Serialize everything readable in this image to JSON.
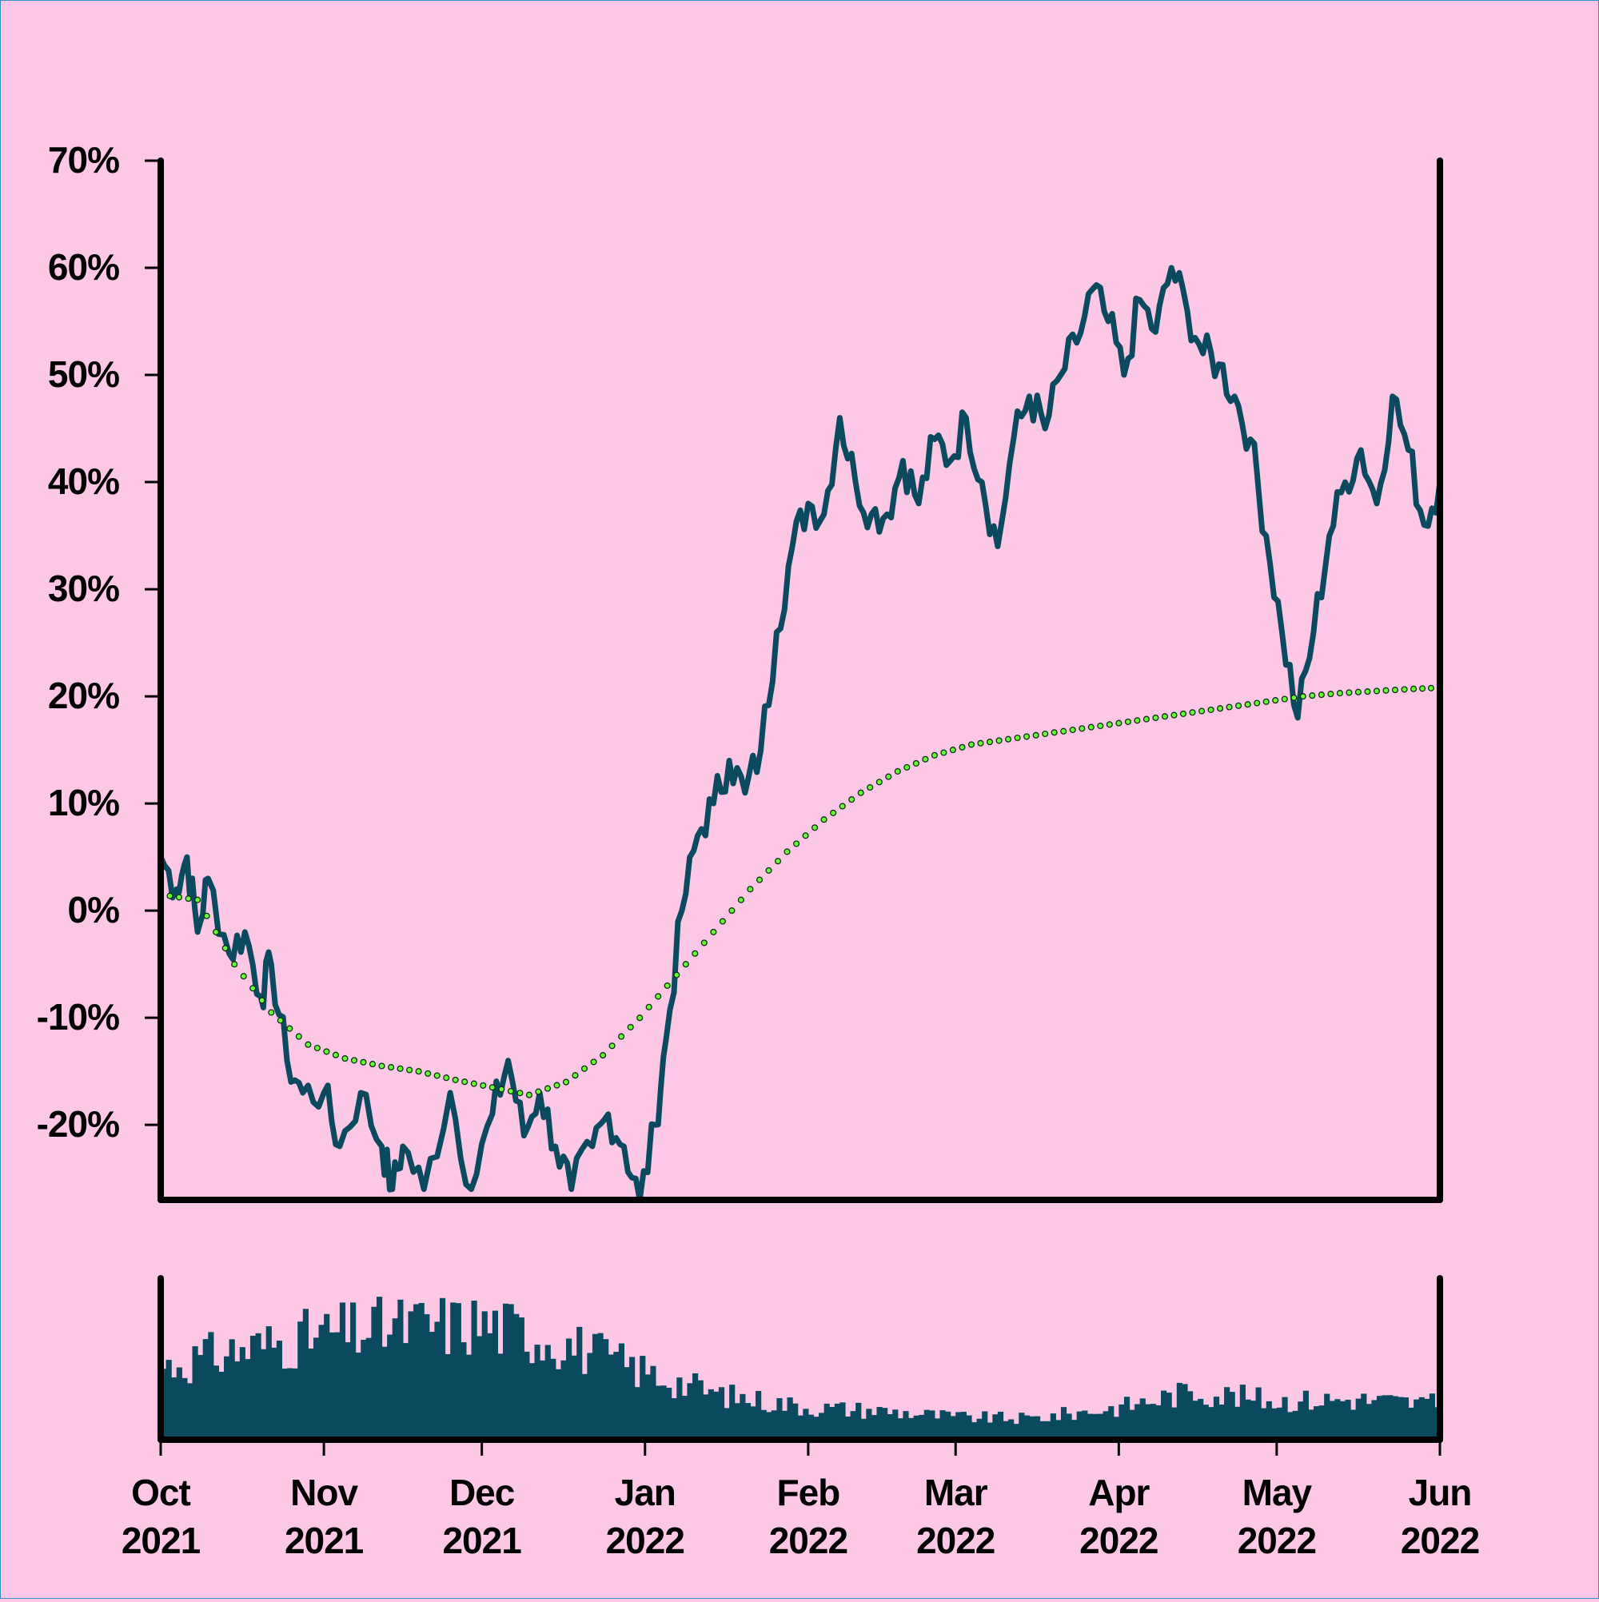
{
  "chart_data": {
    "type": "line",
    "colors": {
      "background": "#fcc8e6",
      "price_line": "#0b4a5e",
      "moving_average_fill": "#66ff33",
      "moving_average_edge": "#0a2a10",
      "volume_bars": "#0b4a5e",
      "axes": "#000000"
    },
    "y_axis": {
      "range": [
        -27,
        70
      ],
      "ticks": [
        70,
        60,
        50,
        40,
        30,
        20,
        10,
        0,
        -10,
        -20
      ],
      "tick_labels": [
        "70%",
        "60%",
        "50%",
        "40%",
        "30%",
        "20%",
        "10%",
        "0%",
        "-10%",
        "-20%"
      ]
    },
    "x_axis": {
      "range": [
        "2021-10-01",
        "2022-06-01"
      ],
      "ticks": [
        {
          "month": "Oct",
          "year": "2021",
          "date": "2021-10-01"
        },
        {
          "month": "Nov",
          "year": "2021",
          "date": "2021-11-01"
        },
        {
          "month": "Dec",
          "year": "2021",
          "date": "2021-12-01"
        },
        {
          "month": "Jan",
          "year": "2022",
          "date": "2022-01-01"
        },
        {
          "month": "Feb",
          "year": "2022",
          "date": "2022-02-01"
        },
        {
          "month": "Mar",
          "year": "2022",
          "date": "2022-03-01"
        },
        {
          "month": "Apr",
          "year": "2022",
          "date": "2022-04-01"
        },
        {
          "month": "May",
          "year": "2022",
          "date": "2022-05-01"
        },
        {
          "month": "Jun",
          "year": "2022",
          "date": "2022-06-01"
        }
      ]
    },
    "grid": false,
    "legend": "none",
    "series": [
      {
        "style": "line",
        "points": [
          [
            "2021-10-01",
            5
          ],
          [
            "2021-10-04",
            2
          ],
          [
            "2021-10-06",
            5
          ],
          [
            "2021-10-08",
            -2
          ],
          [
            "2021-10-10",
            3
          ],
          [
            "2021-10-14",
            -4
          ],
          [
            "2021-10-17",
            -2
          ],
          [
            "2021-10-20",
            -8
          ],
          [
            "2021-10-22",
            -5
          ],
          [
            "2021-10-25",
            -14
          ],
          [
            "2021-10-28",
            -17
          ],
          [
            "2021-11-01",
            -17
          ],
          [
            "2021-11-04",
            -22
          ],
          [
            "2021-11-08",
            -17
          ],
          [
            "2021-11-12",
            -22
          ],
          [
            "2021-11-14",
            -26
          ],
          [
            "2021-11-16",
            -22
          ],
          [
            "2021-11-20",
            -26
          ],
          [
            "2021-11-25",
            -17
          ],
          [
            "2021-11-29",
            -26
          ],
          [
            "2021-12-03",
            -19
          ],
          [
            "2021-12-06",
            -14
          ],
          [
            "2021-12-09",
            -21
          ],
          [
            "2021-12-12",
            -17
          ],
          [
            "2021-12-15",
            -22
          ],
          [
            "2021-12-18",
            -26
          ],
          [
            "2021-12-22",
            -22
          ],
          [
            "2021-12-25",
            -19
          ],
          [
            "2021-12-28",
            -22
          ],
          [
            "2021-12-31",
            -27
          ],
          [
            "2022-01-03",
            -20
          ],
          [
            "2022-01-05",
            -12
          ],
          [
            "2022-01-08",
            0
          ],
          [
            "2022-01-11",
            7
          ],
          [
            "2022-01-14",
            10
          ],
          [
            "2022-01-17",
            14
          ],
          [
            "2022-01-20",
            11
          ],
          [
            "2022-01-23",
            15
          ],
          [
            "2022-01-26",
            26
          ],
          [
            "2022-01-29",
            34
          ],
          [
            "2022-02-01",
            38
          ],
          [
            "2022-02-04",
            37
          ],
          [
            "2022-02-07",
            46
          ],
          [
            "2022-02-10",
            40
          ],
          [
            "2022-02-13",
            37
          ],
          [
            "2022-02-16",
            37
          ],
          [
            "2022-02-19",
            42
          ],
          [
            "2022-02-22",
            38
          ],
          [
            "2022-02-25",
            44
          ],
          [
            "2022-02-28",
            42
          ],
          [
            "2022-03-03",
            46
          ],
          [
            "2022-03-06",
            40
          ],
          [
            "2022-03-09",
            34
          ],
          [
            "2022-03-12",
            44
          ],
          [
            "2022-03-15",
            48
          ],
          [
            "2022-03-18",
            45
          ],
          [
            "2022-03-21",
            50
          ],
          [
            "2022-03-24",
            53
          ],
          [
            "2022-03-27",
            58
          ],
          [
            "2022-03-30",
            55
          ],
          [
            "2022-04-02",
            50
          ],
          [
            "2022-04-05",
            57
          ],
          [
            "2022-04-08",
            54
          ],
          [
            "2022-04-11",
            60
          ],
          [
            "2022-04-14",
            56
          ],
          [
            "2022-04-17",
            52
          ],
          [
            "2022-04-20",
            51
          ],
          [
            "2022-04-23",
            48
          ],
          [
            "2022-04-26",
            44
          ],
          [
            "2022-04-29",
            35
          ],
          [
            "2022-05-02",
            26
          ],
          [
            "2022-05-05",
            18
          ],
          [
            "2022-05-08",
            26
          ],
          [
            "2022-05-11",
            35
          ],
          [
            "2022-05-14",
            40
          ],
          [
            "2022-05-17",
            43
          ],
          [
            "2022-05-20",
            38
          ],
          [
            "2022-05-23",
            48
          ],
          [
            "2022-05-26",
            43
          ],
          [
            "2022-05-29",
            36
          ],
          [
            "2022-06-01",
            40
          ]
        ]
      },
      {
        "style": "dotted-markers",
        "points": [
          [
            "2021-10-01",
            1.5
          ],
          [
            "2021-10-08",
            1
          ],
          [
            "2021-10-15",
            -5
          ],
          [
            "2021-10-22",
            -9.5
          ],
          [
            "2021-10-29",
            -12.5
          ],
          [
            "2021-11-05",
            -13.8
          ],
          [
            "2021-11-12",
            -14.5
          ],
          [
            "2021-11-19",
            -15
          ],
          [
            "2021-11-26",
            -15.8
          ],
          [
            "2021-12-03",
            -16.5
          ],
          [
            "2021-12-10",
            -17.2
          ],
          [
            "2021-12-17",
            -16
          ],
          [
            "2021-12-24",
            -13.5
          ],
          [
            "2021-12-31",
            -10
          ],
          [
            "2022-01-07",
            -6
          ],
          [
            "2022-01-14",
            -2
          ],
          [
            "2022-01-21",
            2
          ],
          [
            "2022-01-28",
            5.5
          ],
          [
            "2022-02-04",
            8.5
          ],
          [
            "2022-02-11",
            11
          ],
          [
            "2022-02-18",
            13
          ],
          [
            "2022-02-25",
            14.5
          ],
          [
            "2022-03-04",
            15.5
          ],
          [
            "2022-03-11",
            16
          ],
          [
            "2022-03-18",
            16.5
          ],
          [
            "2022-03-25",
            17
          ],
          [
            "2022-04-01",
            17.5
          ],
          [
            "2022-04-08",
            18
          ],
          [
            "2022-04-15",
            18.5
          ],
          [
            "2022-04-22",
            19
          ],
          [
            "2022-04-29",
            19.5
          ],
          [
            "2022-05-06",
            20
          ],
          [
            "2022-05-13",
            20.3
          ],
          [
            "2022-05-20",
            20.5
          ],
          [
            "2022-05-27",
            20.7
          ],
          [
            "2022-06-01",
            20.8
          ]
        ]
      }
    ],
    "volume_panel": {
      "type": "bar",
      "range": [
        0,
        1
      ],
      "envelope": [
        [
          "2021-10-01",
          0.45
        ],
        [
          "2021-10-15",
          0.55
        ],
        [
          "2021-11-01",
          0.65
        ],
        [
          "2021-11-15",
          0.7
        ],
        [
          "2021-12-01",
          0.72
        ],
        [
          "2021-12-15",
          0.62
        ],
        [
          "2022-01-01",
          0.42
        ],
        [
          "2022-01-15",
          0.28
        ],
        [
          "2022-02-01",
          0.2
        ],
        [
          "2022-02-15",
          0.18
        ],
        [
          "2022-03-01",
          0.14
        ],
        [
          "2022-03-15",
          0.13
        ],
        [
          "2022-04-01",
          0.2
        ],
        [
          "2022-04-15",
          0.3
        ],
        [
          "2022-05-01",
          0.24
        ],
        [
          "2022-05-15",
          0.25
        ],
        [
          "2022-06-01",
          0.22
        ]
      ]
    }
  }
}
